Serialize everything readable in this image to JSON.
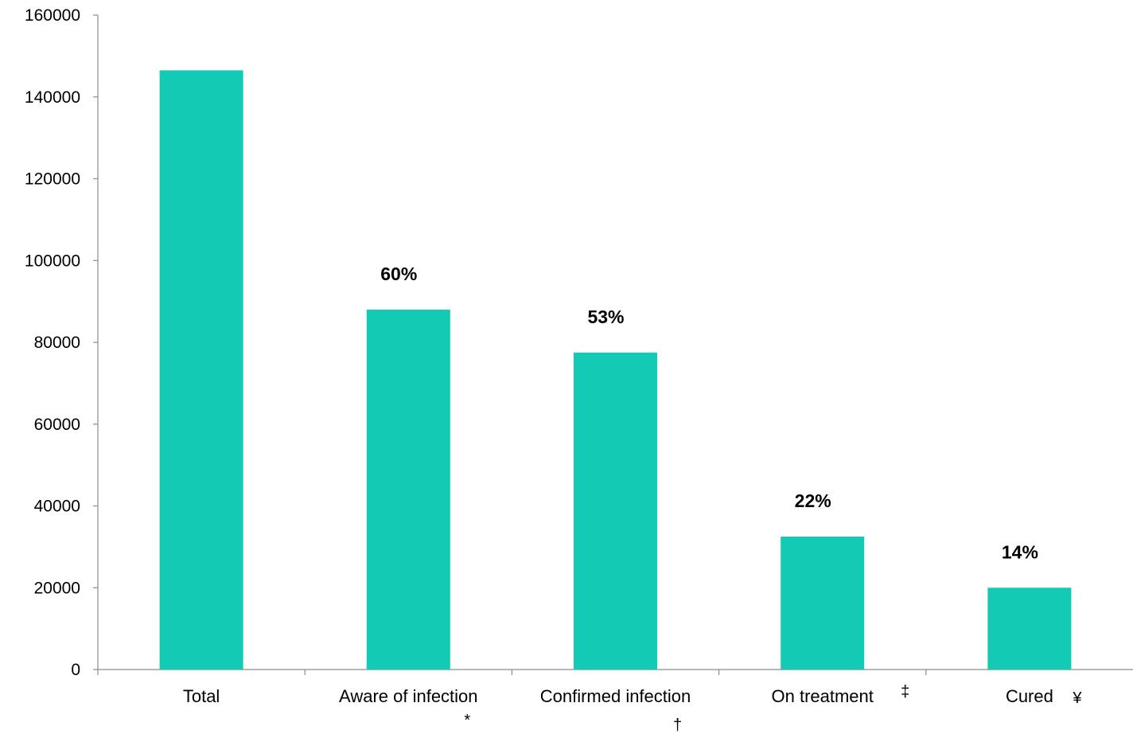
{
  "chart_data": {
    "type": "bar",
    "title": "",
    "xlabel": "",
    "ylabel": "",
    "ylim": [
      0,
      160000
    ],
    "yticks": [
      0,
      20000,
      40000,
      60000,
      80000,
      100000,
      120000,
      140000,
      160000
    ],
    "yticks_text": [
      "0",
      "20000",
      "40000",
      "60000",
      "80000",
      "100000",
      "120000",
      "140000",
      "160000"
    ],
    "categories": [
      "Total",
      "Aware of infection",
      "Confirmed infection",
      "On treatment",
      "Cured"
    ],
    "footnotes": [
      "",
      "*",
      "†",
      "‡",
      "¥"
    ],
    "values": [
      146500,
      88000,
      77500,
      32500,
      20000
    ],
    "percent_labels": [
      "",
      "60%",
      "53%",
      "22%",
      "14%"
    ],
    "bar_color": "#13cab5",
    "grid": false,
    "legend": "none"
  }
}
